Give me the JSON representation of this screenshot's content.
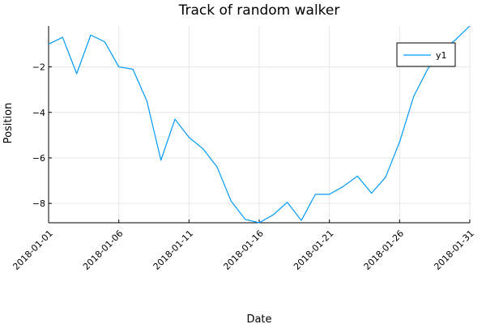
{
  "chart_data": {
    "type": "line",
    "title": "Track of random walker",
    "xlabel": "Date",
    "ylabel": "Position",
    "x": [
      "2018-01-01",
      "2018-01-02",
      "2018-01-03",
      "2018-01-04",
      "2018-01-05",
      "2018-01-06",
      "2018-01-07",
      "2018-01-08",
      "2018-01-09",
      "2018-01-10",
      "2018-01-11",
      "2018-01-12",
      "2018-01-13",
      "2018-01-14",
      "2018-01-15",
      "2018-01-16",
      "2018-01-17",
      "2018-01-18",
      "2018-01-19",
      "2018-01-20",
      "2018-01-21",
      "2018-01-22",
      "2018-01-23",
      "2018-01-24",
      "2018-01-25",
      "2018-01-26",
      "2018-01-27",
      "2018-01-28",
      "2018-01-29",
      "2018-01-30",
      "2018-01-31"
    ],
    "series": [
      {
        "name": "y1",
        "color": "#009AFA",
        "values": [
          -1.0,
          -0.7,
          -2.3,
          -0.6,
          -0.9,
          -2.0,
          -2.1,
          -3.5,
          -6.1,
          -4.3,
          -5.1,
          -5.6,
          -6.4,
          -7.9,
          -8.7,
          -8.85,
          -8.5,
          -7.95,
          -8.75,
          -7.6,
          -7.6,
          -7.25,
          -6.8,
          -7.55,
          -6.85,
          -5.3,
          -3.3,
          -2.1,
          -1.3,
          -0.8,
          -0.2
        ]
      }
    ],
    "xticks": [
      "2018-01-01",
      "2018-01-06",
      "2018-01-11",
      "2018-01-16",
      "2018-01-21",
      "2018-01-26",
      "2018-01-31"
    ],
    "yticks": [
      -8,
      -6,
      -4,
      -2
    ],
    "ytick_labels": [
      "−8",
      "−6",
      "−4",
      "−2"
    ],
    "ylim": [
      -8.85,
      -0.2
    ],
    "grid": true,
    "legend": "top-right"
  }
}
